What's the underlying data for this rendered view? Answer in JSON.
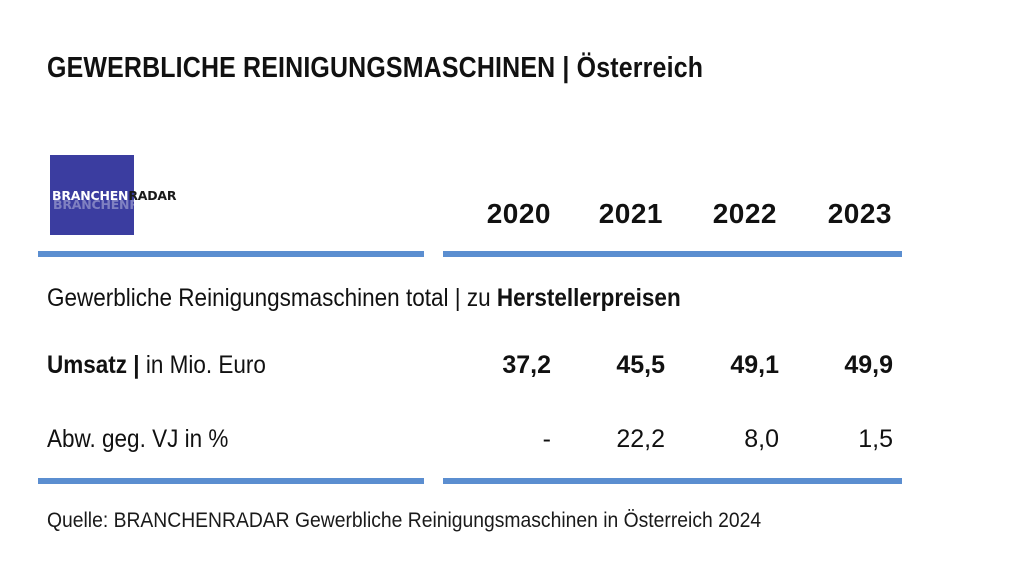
{
  "title": "GEWERBLICHE REINIGUNGSMASCHINEN | Österreich",
  "logo": {
    "part1": "BRANCHEN",
    "part2": "RADAR"
  },
  "section": {
    "prefix": "Gewerbliche Reinigungsmaschinen total | zu ",
    "emphasis": "Herstellerpreisen"
  },
  "rows": {
    "umsatz": {
      "label_bold": "Umsatz |",
      "label_rest": " in Mio. Euro"
    },
    "abw": {
      "label": "Abw. geg. VJ in %"
    }
  },
  "source": "Quelle: BRANCHENRADAR Gewerbliche Reinigungsmaschinen in Österreich 2024",
  "colors": {
    "accent_bar": "#5b8ed0",
    "logo_bg": "#3b3da0"
  },
  "chart_data": {
    "type": "table",
    "title": "GEWERBLICHE REINIGUNGSMASCHINEN | Österreich",
    "columns": [
      "2020",
      "2021",
      "2022",
      "2023"
    ],
    "rows": [
      {
        "name": "Umsatz | in Mio. Euro",
        "values": [
          "37,2",
          "45,5",
          "49,1",
          "49,9"
        ]
      },
      {
        "name": "Abw. geg. VJ in %",
        "values": [
          "-",
          "22,2",
          "8,0",
          "1,5"
        ]
      }
    ]
  }
}
